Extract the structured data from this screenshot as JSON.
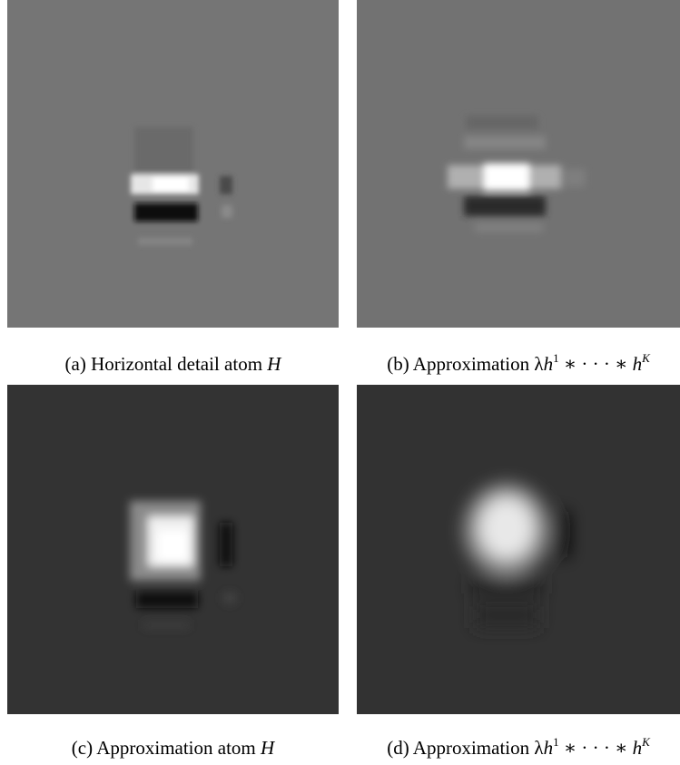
{
  "figure": {
    "panels": [
      {
        "id": "a",
        "caption": {
          "prefix": "(a) Horizontal detail atom ",
          "var": "H"
        },
        "background": "#757575"
      },
      {
        "id": "b",
        "caption": {
          "prefix": "(b) Approximation ",
          "lambda": "λ",
          "h": "h",
          "sup1": "1",
          "ops": " ∗ · · · ∗ ",
          "h2": "h",
          "supK": "K"
        },
        "background": "#727272"
      },
      {
        "id": "c",
        "caption": {
          "prefix": "(c) Approximation atom ",
          "var": "H"
        },
        "background": "#333333"
      },
      {
        "id": "d",
        "caption": {
          "prefix": "(d) Approximation ",
          "lambda": "λ",
          "h": "h",
          "sup1": "1",
          "ops": " ∗ · · · ∗ ",
          "h2": "h",
          "supK": "K"
        },
        "background": "#323232"
      }
    ]
  }
}
